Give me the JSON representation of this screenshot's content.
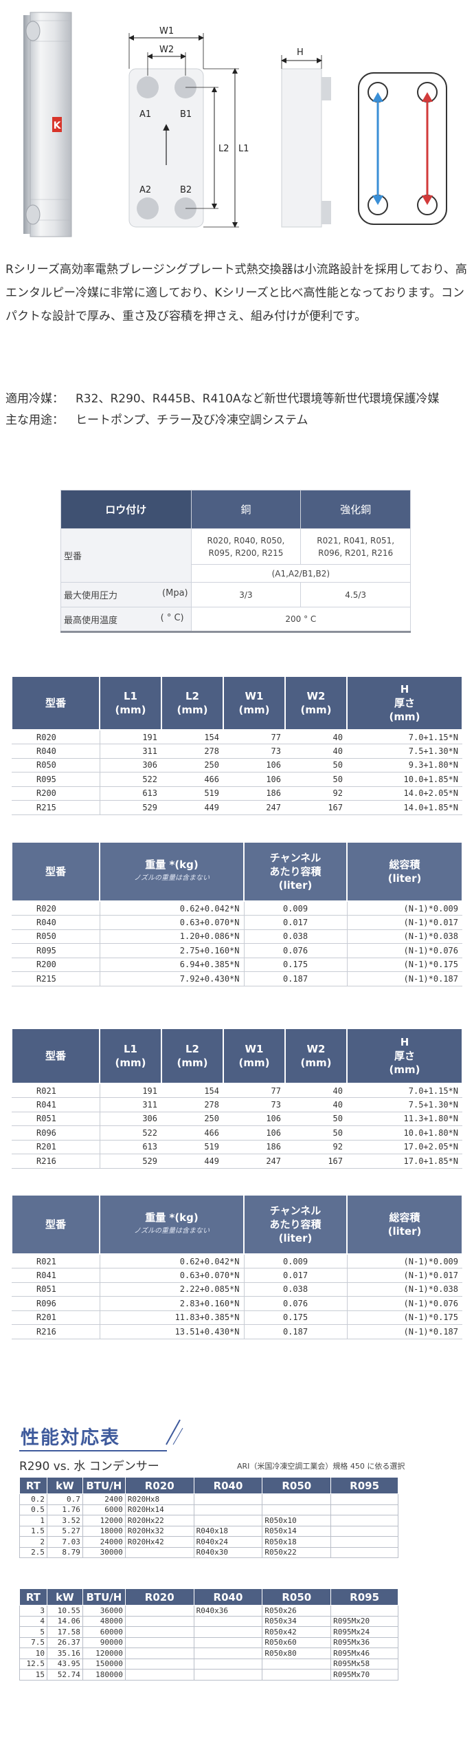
{
  "diagram": {
    "logo_letter": "K",
    "labels": {
      "w1": "W1",
      "w2": "W2",
      "h": "H",
      "l1": "L1",
      "l2": "L2",
      "a1": "A1",
      "b1": "B1",
      "a2": "A2",
      "b2": "B2"
    },
    "colors": {
      "cold_arrow": "#3a8fd6",
      "hot_arrow": "#d23a3a",
      "brand": "#d8342a"
    }
  },
  "description": {
    "paragraph": "Rシリーズ高効率電熱ブレージングプレート式熱交換器は小流路設計を採用しており、高エンタルピー冷媒に非常に適しており、Kシリーズと比べ高性能となっております。コンパクトな設計で厚み、重さ及び容積を押さえ、組み付けが便利です。"
  },
  "usage": {
    "refrigerant_label": "適用冷媒：",
    "refrigerant_value": "R32、R290、R445B、R410Aなど新世代環境等新世代環境保護冷媒",
    "application_label": "主な用途：",
    "application_value": "ヒートポンプ、チラー及び冷凍空調システム"
  },
  "material_table": {
    "header": [
      "ロウ付け",
      "銅",
      "強化銅"
    ],
    "model_label": "型番",
    "copper_models": "R020, R040, R050, R095, R200, R215",
    "reinforced_models": "R021, R041, R051, R096, R201, R216",
    "ports": "(A1,A2/B1,B2)",
    "pressure_label": "最大使用圧力",
    "pressure_unit": "(Mpa)",
    "pressure_copper": "3/3",
    "pressure_reinforced": "4.5/3",
    "temp_label": "最高使用温度",
    "temp_unit": "( ° C)",
    "temp_value": "200 ° C"
  },
  "dim_headers": {
    "model": "型番",
    "l1": "L1",
    "l2": "L2",
    "w1": "W1",
    "w2": "W2",
    "unit": "(mm)",
    "h": "H",
    "h_sub": "厚さ",
    "h_unit": "(mm)"
  },
  "weight_headers": {
    "model": "型番",
    "weight": "重量 *(kg)",
    "weight_note": "ノズルの重量は含まない",
    "channel": "チャンネル",
    "channel2": "あたり容積",
    "channel_unit": "(liter)",
    "total": "総容積",
    "total_unit": "(liter)"
  },
  "dim_table_1": [
    [
      "R020",
      "191",
      "154",
      "77",
      "40",
      "7.0+1.15*N"
    ],
    [
      "R040",
      "311",
      "278",
      "73",
      "40",
      "7.5+1.30*N"
    ],
    [
      "R050",
      "306",
      "250",
      "106",
      "50",
      "9.3+1.80*N"
    ],
    [
      "R095",
      "522",
      "466",
      "106",
      "50",
      "10.0+1.85*N"
    ],
    [
      "R200",
      "613",
      "519",
      "186",
      "92",
      "14.0+2.05*N"
    ],
    [
      "R215",
      "529",
      "449",
      "247",
      "167",
      "14.0+1.85*N"
    ]
  ],
  "weight_table_1": [
    [
      "R020",
      "0.62+0.042*N",
      "0.009",
      "(N-1)*0.009"
    ],
    [
      "R040",
      "0.63+0.070*N",
      "0.017",
      "(N-1)*0.017"
    ],
    [
      "R050",
      "1.20+0.086*N",
      "0.038",
      "(N-1)*0.038"
    ],
    [
      "R095",
      "2.75+0.160*N",
      "0.076",
      "(N-1)*0.076"
    ],
    [
      "R200",
      "6.94+0.385*N",
      "0.175",
      "(N-1)*0.175"
    ],
    [
      "R215",
      "7.92+0.430*N",
      "0.187",
      "(N-1)*0.187"
    ]
  ],
  "dim_table_2": [
    [
      "R021",
      "191",
      "154",
      "77",
      "40",
      "7.0+1.15*N"
    ],
    [
      "R041",
      "311",
      "278",
      "73",
      "40",
      "7.5+1.30*N"
    ],
    [
      "R051",
      "306",
      "250",
      "106",
      "50",
      "11.3+1.80*N"
    ],
    [
      "R096",
      "522",
      "466",
      "106",
      "50",
      "10.0+1.80*N"
    ],
    [
      "R201",
      "613",
      "519",
      "186",
      "92",
      "17.0+2.05*N"
    ],
    [
      "R216",
      "529",
      "449",
      "247",
      "167",
      "17.0+1.85*N"
    ]
  ],
  "weight_table_2": [
    [
      "R021",
      "0.62+0.042*N",
      "0.009",
      "(N-1)*0.009"
    ],
    [
      "R041",
      "0.63+0.070*N",
      "0.017",
      "(N-1)*0.017"
    ],
    [
      "R051",
      "2.22+0.085*N",
      "0.038",
      "(N-1)*0.038"
    ],
    [
      "R096",
      "2.83+0.160*N",
      "0.076",
      "(N-1)*0.076"
    ],
    [
      "R201",
      "11.83+0.385*N",
      "0.175",
      "(N-1)*0.175"
    ],
    [
      "R216",
      "13.51+0.430*N",
      "0.187",
      "(N-1)*0.187"
    ]
  ],
  "performance": {
    "title": "性能対応表",
    "subtitle": "R290 vs. 水 コンデンサー",
    "note": "ARI（米国冷凍空調工業会）規格 450 に依る選択",
    "headers": [
      "RT",
      "kW",
      "BTU/H",
      "R020",
      "R040",
      "R050",
      "R095"
    ],
    "table_1": [
      [
        "0.2",
        "0.7",
        "2400",
        "R020Hx8",
        "",
        "",
        ""
      ],
      [
        "0.5",
        "1.76",
        "6000",
        "R020Hx14",
        "",
        "",
        ""
      ],
      [
        "1",
        "3.52",
        "12000",
        "R020Hx22",
        "",
        "R050x10",
        ""
      ],
      [
        "1.5",
        "5.27",
        "18000",
        "R020Hx32",
        "R040x18",
        "R050x14",
        ""
      ],
      [
        "2",
        "7.03",
        "24000",
        "R020Hx42",
        "R040x24",
        "R050x18",
        ""
      ],
      [
        "2.5",
        "8.79",
        "30000",
        "",
        "R040x30",
        "R050x22",
        ""
      ]
    ],
    "table_2": [
      [
        "3",
        "10.55",
        "36000",
        "",
        "R040x36",
        "R050x26",
        ""
      ],
      [
        "4",
        "14.06",
        "48000",
        "",
        "",
        "R050x34",
        "R095Mx20"
      ],
      [
        "5",
        "17.58",
        "60000",
        "",
        "",
        "R050x42",
        "R095Mx24"
      ],
      [
        "7.5",
        "26.37",
        "90000",
        "",
        "",
        "R050x60",
        "R095Mx36"
      ],
      [
        "10",
        "35.16",
        "120000",
        "",
        "",
        "R050x80",
        "R095Mx46"
      ],
      [
        "12.5",
        "43.95",
        "150000",
        "",
        "",
        "",
        "R095Mx58"
      ],
      [
        "15",
        "52.74",
        "180000",
        "",
        "",
        "",
        "R095Mx70"
      ]
    ]
  }
}
